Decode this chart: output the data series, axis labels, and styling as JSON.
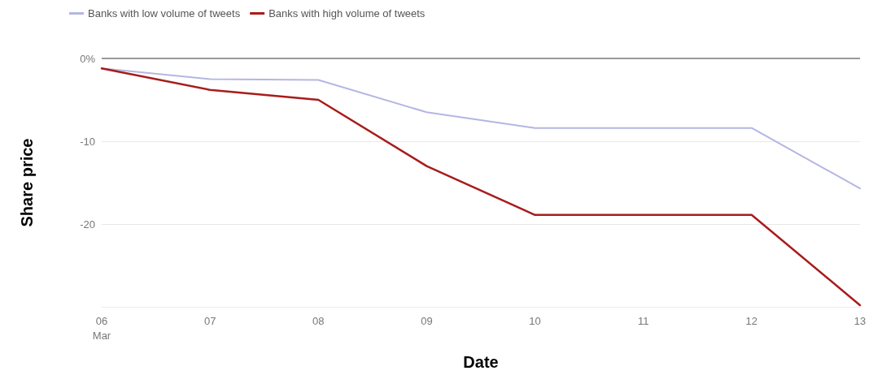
{
  "chart_data": {
    "type": "line",
    "xlabel": "Date",
    "ylabel": "Share price",
    "categories": [
      "06 Mar",
      "07",
      "08",
      "09",
      "10",
      "11",
      "12",
      "13"
    ],
    "series": [
      {
        "name": "Banks with low volume of tweets",
        "color": "#b4b6e2",
        "values": [
          -1.2,
          -2.5,
          -2.6,
          -6.5,
          -8.4,
          -8.4,
          -8.4,
          -15.7
        ]
      },
      {
        "name": "Banks with high volume of tweets",
        "color": "#a81c1c",
        "values": [
          -1.2,
          -3.8,
          -5.0,
          -13.0,
          -18.9,
          -18.9,
          -18.9,
          -29.8
        ]
      }
    ],
    "ylim": [
      -30,
      0
    ],
    "yticks": [
      {
        "value": 0,
        "label": "0%"
      },
      -10,
      -20
    ],
    "ref_lines": [
      {
        "axis": "y",
        "value": 0,
        "label": null,
        "color": "#999999"
      }
    ],
    "grid": "y",
    "legend": "top left",
    "marker": "none",
    "line_style": "solid"
  }
}
